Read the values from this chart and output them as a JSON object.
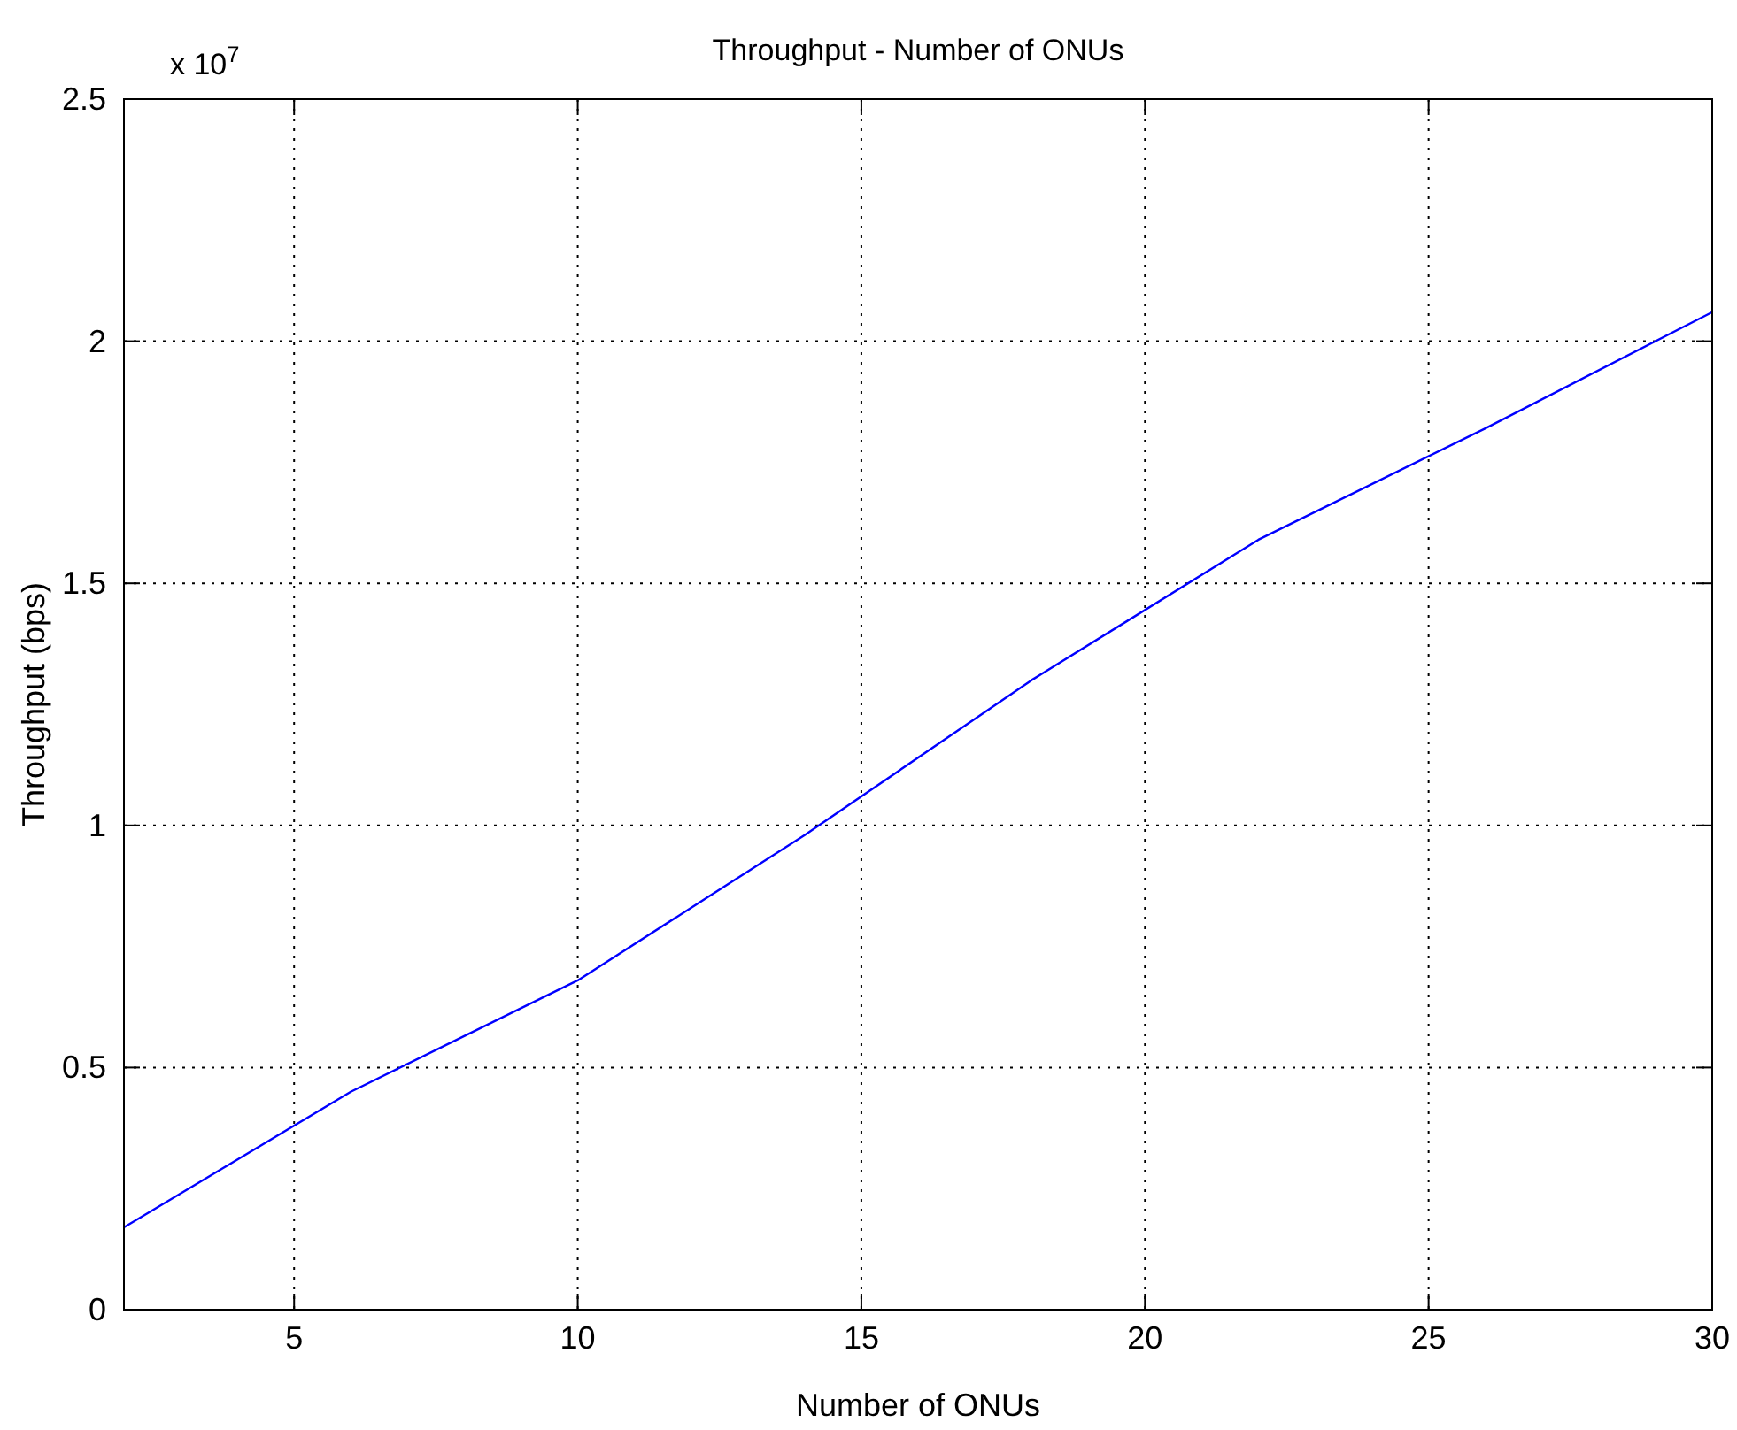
{
  "chart_data": {
    "type": "line",
    "title": "Throughput - Number of ONUs",
    "xlabel": "Number of ONUs",
    "ylabel": "Throughput (bps)",
    "x": [
      2,
      6,
      10,
      14,
      18,
      22,
      26,
      30
    ],
    "series": [
      {
        "color": "#0000ff",
        "values": [
          0.17,
          0.45,
          0.68,
          0.98,
          1.3,
          1.59,
          1.82,
          2.06
        ]
      }
    ],
    "xlim": [
      2,
      30
    ],
    "xticks": [
      5,
      10,
      15,
      20,
      25,
      30
    ],
    "ylim": [
      0,
      2.5
    ],
    "yticks": [
      0,
      0.5,
      1,
      1.5,
      2,
      2.5
    ],
    "grid": true,
    "annotations": [
      "x 10$^{7}$"
    ]
  }
}
